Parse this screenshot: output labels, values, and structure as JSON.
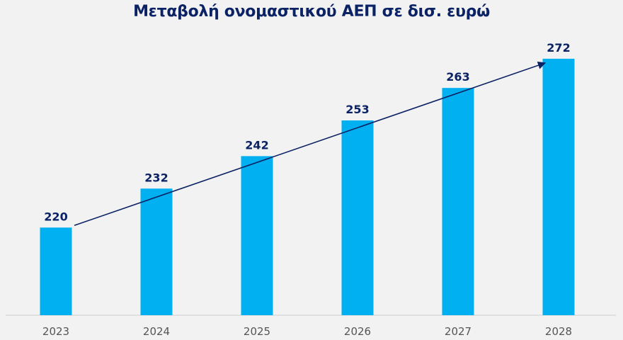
{
  "chart_data": {
    "type": "bar",
    "title": "Μεταβολή ονομαστικού ΑΕΠ σε δισ. ευρώ",
    "categories": [
      "2023",
      "2024",
      "2025",
      "2026",
      "2027",
      "2028"
    ],
    "values": [
      220,
      232,
      242,
      253,
      263,
      272
    ],
    "xlabel": "",
    "ylabel": "",
    "ylim": [
      193,
      277
    ],
    "grid": false,
    "legend": "none",
    "annotations": [
      {
        "type": "trend-arrow",
        "from": "2023",
        "to": "2028"
      }
    ],
    "colors": {
      "bar": "#00b0f0",
      "label": "#0b2265",
      "arrow": "#0b2265",
      "tick": "#555555",
      "axis": "#d9d9d9",
      "background": "#f2f2f2"
    }
  }
}
